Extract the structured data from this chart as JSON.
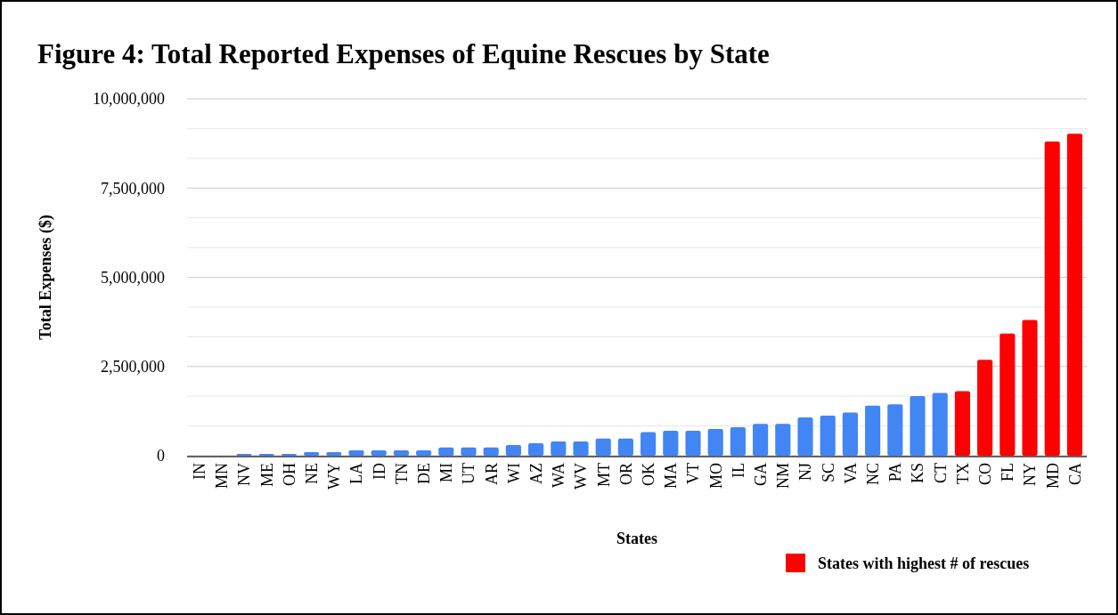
{
  "chart_data": {
    "type": "bar",
    "title": "Figure 4: Total Reported Expenses of Equine Rescues by State",
    "xlabel": "States",
    "ylabel": "Total Expenses ($)",
    "categories": [
      "IN",
      "MN",
      "NV",
      "ME",
      "OH",
      "NE",
      "WY",
      "LA",
      "ID",
      "TN",
      "DE",
      "MI",
      "UT",
      "AR",
      "WI",
      "AZ",
      "WA",
      "WV",
      "MT",
      "OR",
      "OK",
      "MA",
      "VT",
      "MO",
      "IL",
      "GA",
      "NM",
      "NJ",
      "SC",
      "VA",
      "NC",
      "PA",
      "KS",
      "CT",
      "TX",
      "CO",
      "FL",
      "NY",
      "MD",
      "CA"
    ],
    "series": [
      {
        "color": "#4285f4",
        "values": [
          0,
          0,
          50000,
          50000,
          50000,
          100000,
          100000,
          150000,
          150000,
          150000,
          150000,
          230000,
          230000,
          230000,
          300000,
          350000,
          400000,
          400000,
          480000,
          480000,
          660000,
          700000,
          700000,
          750000,
          800000,
          890000,
          890000,
          1070000,
          1120000,
          1210000,
          1400000,
          1440000,
          1670000,
          1760000,
          null,
          null,
          null,
          null,
          null,
          null
        ]
      },
      {
        "name": "States with highest # of rescues",
        "color": "#ff0000",
        "values": [
          null,
          null,
          null,
          null,
          null,
          null,
          null,
          null,
          null,
          null,
          null,
          null,
          null,
          null,
          null,
          null,
          null,
          null,
          null,
          null,
          null,
          null,
          null,
          null,
          null,
          null,
          null,
          null,
          null,
          null,
          null,
          null,
          null,
          null,
          1810000,
          2690000,
          3420000,
          3800000,
          8800000,
          9020000
        ]
      }
    ],
    "ylim": [
      0,
      10000000
    ],
    "yticks": [
      {
        "value": 0,
        "label": "0"
      },
      {
        "value": 833333,
        "label": null
      },
      {
        "value": 1666667,
        "label": null
      },
      {
        "value": 2500000,
        "label": "2,500,000"
      },
      {
        "value": 3333333,
        "label": null
      },
      {
        "value": 4166667,
        "label": null
      },
      {
        "value": 5000000,
        "label": "5,000,000"
      },
      {
        "value": 5833333,
        "label": null
      },
      {
        "value": 6666667,
        "label": null
      },
      {
        "value": 7500000,
        "label": "7,500,000"
      },
      {
        "value": 8333333,
        "label": null
      },
      {
        "value": 9166667,
        "label": null
      },
      {
        "value": 10000000,
        "label": "10,000,000"
      }
    ],
    "grid": "y",
    "legend": "bottom right"
  }
}
